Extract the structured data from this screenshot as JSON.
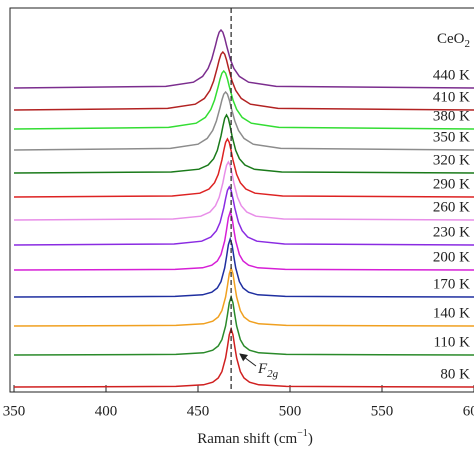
{
  "chart_data": {
    "type": "line",
    "xlabel": {
      "text": "Raman shift (cm",
      "superscript": "−1",
      "suffix": ")"
    },
    "sample_label": {
      "text": "CeO",
      "subscript": "2"
    },
    "peak_label": {
      "text": "F",
      "subscript": "2g"
    },
    "reference_line": {
      "x": 468,
      "style": "dashed"
    },
    "xlim": [
      350,
      600
    ],
    "xticks": [
      350,
      400,
      450,
      500,
      550,
      600
    ],
    "ylim": [
      0,
      384
    ],
    "series": [
      {
        "name": "440 K",
        "color": "#7b2d8e",
        "x": [
          350,
          432.5,
          447.5,
          452.5,
          455.5,
          457.5,
          459.5,
          460.5,
          461.5,
          462.5,
          463.5,
          464.5,
          465.5,
          467.5,
          469.5,
          472.5,
          477.5,
          492.5,
          600
        ],
        "values": [
          304,
          305.6,
          309.8,
          315.6,
          323.6,
          333,
          346.6,
          354,
          359.8,
          362,
          359.8,
          354,
          346.6,
          333,
          323.6,
          315.6,
          309.8,
          305.6,
          304
        ]
      },
      {
        "name": "410 K",
        "color": "#b22222",
        "x": [
          350,
          433.5,
          448.5,
          453.5,
          456.5,
          458.5,
          460.5,
          461.5,
          462.5,
          463.5,
          464.5,
          465.5,
          466.5,
          468.5,
          470.5,
          473.5,
          478.5,
          493.5,
          600
        ],
        "values": [
          282,
          283.6,
          287.8,
          293.6,
          301.6,
          311,
          324.6,
          332,
          337.8,
          340,
          337.8,
          332,
          324.6,
          311,
          301.6,
          293.6,
          287.8,
          283.6,
          282
        ]
      },
      {
        "name": "380 K",
        "color": "#33dd33",
        "x": [
          350,
          434,
          449,
          454,
          457,
          459,
          461,
          462,
          463,
          464,
          465,
          466,
          467,
          469,
          471,
          474,
          479,
          494,
          600
        ],
        "values": [
          263,
          264.6,
          268.8,
          274.6,
          282.6,
          292,
          305.6,
          313,
          318.8,
          321,
          318.8,
          313,
          305.6,
          292,
          282.6,
          274.6,
          268.8,
          264.6,
          263
        ]
      },
      {
        "name": "350 K",
        "color": "#8c8c8c",
        "x": [
          350,
          435,
          450,
          455,
          458,
          460,
          462,
          463,
          464,
          465,
          466,
          467,
          468,
          470,
          472,
          475,
          480,
          495,
          600
        ],
        "values": [
          242,
          243.6,
          247.8,
          253.6,
          261.6,
          271,
          284.6,
          292,
          297.8,
          300,
          297.8,
          292,
          284.6,
          271,
          261.6,
          253.6,
          247.8,
          243.6,
          242
        ]
      },
      {
        "name": "320 K",
        "color": "#1a7a1a",
        "x": [
          350,
          435.5,
          450.5,
          455.5,
          458.5,
          460.5,
          462.5,
          463.5,
          464.5,
          465.5,
          466.5,
          467.5,
          468.5,
          470.5,
          472.5,
          475.5,
          480.5,
          495.5,
          600
        ],
        "values": [
          219,
          220,
          222.8,
          227,
          233.3,
          241.6,
          256.1,
          265.4,
          273.6,
          277,
          273.6,
          265.4,
          256.1,
          241.6,
          233.3,
          227,
          222.8,
          220,
          219
        ]
      },
      {
        "name": "290 K",
        "color": "#dd2222",
        "x": [
          350,
          436,
          451,
          456,
          459,
          461,
          463,
          464,
          465,
          466,
          467,
          468,
          469,
          471,
          473,
          476,
          481,
          496,
          600
        ],
        "values": [
          195,
          196,
          198.8,
          203,
          209.3,
          217.6,
          232.1,
          241.4,
          249.6,
          253,
          249.6,
          241.4,
          232.1,
          217.6,
          209.3,
          203,
          198.8,
          196,
          195
        ]
      },
      {
        "name": "260 K",
        "color": "#e88ee8",
        "x": [
          350,
          436.5,
          451.5,
          456.5,
          459.5,
          461.5,
          463.5,
          464.5,
          465.5,
          466.5,
          467.5,
          468.5,
          469.5,
          471.5,
          473.5,
          476.5,
          481.5,
          496.5,
          600
        ],
        "values": [
          172,
          173,
          175.8,
          180,
          186.3,
          194.6,
          209.1,
          218.4,
          226.6,
          230,
          226.6,
          218.4,
          209.1,
          194.6,
          186.3,
          180,
          175.8,
          173,
          172
        ]
      },
      {
        "name": "230 K",
        "color": "#8a2be2",
        "x": [
          350,
          437,
          452,
          457,
          460,
          462,
          464,
          465,
          466,
          467,
          468,
          469,
          470,
          472,
          474,
          477,
          482,
          497,
          600
        ],
        "values": [
          147,
          148,
          150.8,
          155,
          161.3,
          169.6,
          184.1,
          193.4,
          201.6,
          205,
          201.6,
          193.4,
          184.1,
          169.6,
          161.3,
          155,
          150.8,
          148,
          147
        ]
      },
      {
        "name": "200 K",
        "color": "#d61fd6",
        "x": [
          350,
          437.5,
          452.5,
          457.5,
          460.5,
          462.5,
          464.5,
          465.5,
          466.5,
          467.5,
          468.5,
          469.5,
          470.5,
          472.5,
          474.5,
          477.5,
          482.5,
          497.5,
          600
        ],
        "values": [
          122,
          122.6,
          124.2,
          126.8,
          131,
          137.4,
          151,
          162.1,
          174.2,
          180,
          174.2,
          162.1,
          151,
          137.4,
          131,
          126.8,
          124.2,
          122.6,
          122
        ]
      },
      {
        "name": "170 K",
        "color": "#1f2fa0",
        "x": [
          350,
          437.5,
          452.5,
          457.5,
          460.5,
          462.5,
          464.5,
          465.5,
          466.5,
          467.5,
          468.5,
          469.5,
          470.5,
          472.5,
          474.5,
          477.5,
          482.5,
          497.5,
          600
        ],
        "values": [
          95,
          95.6,
          97.2,
          99.8,
          104,
          110.4,
          124,
          135.1,
          147.2,
          153,
          147.2,
          135.1,
          124,
          110.4,
          104,
          99.8,
          97.2,
          95.6,
          95
        ]
      },
      {
        "name": "140 K",
        "color": "#f0a020",
        "x": [
          350,
          438,
          453,
          458,
          461,
          463,
          465,
          466,
          467,
          468,
          469,
          470,
          471,
          473,
          475,
          478,
          483,
          498,
          600
        ],
        "values": [
          66,
          66.6,
          68.2,
          70.8,
          75,
          81.4,
          95,
          106.1,
          118.2,
          124,
          118.2,
          106.1,
          95,
          81.4,
          75,
          70.8,
          68.2,
          66.6,
          66
        ]
      },
      {
        "name": "110 K",
        "color": "#2a8a2a",
        "x": [
          350,
          438,
          453,
          458,
          461,
          463,
          465,
          466,
          467,
          468,
          469,
          470,
          471,
          473,
          475,
          478,
          483,
          498,
          600
        ],
        "values": [
          37,
          37.6,
          39.2,
          41.8,
          46,
          52.4,
          66,
          77.1,
          89.2,
          95,
          89.2,
          77.1,
          66,
          52.4,
          46,
          41.8,
          39.2,
          37.6,
          37
        ]
      },
      {
        "name": "80 K",
        "color": "#d02020",
        "x": [
          350,
          438,
          453,
          458,
          461,
          463,
          465,
          466,
          467,
          468,
          469,
          470,
          471,
          473,
          475,
          478,
          483,
          498,
          600
        ],
        "values": [
          5,
          5.6,
          7.2,
          9.8,
          14,
          20.4,
          34,
          45.1,
          57.2,
          63,
          57.2,
          45.1,
          34,
          20.4,
          14,
          9.8,
          7.2,
          5.6,
          5
        ]
      }
    ]
  }
}
